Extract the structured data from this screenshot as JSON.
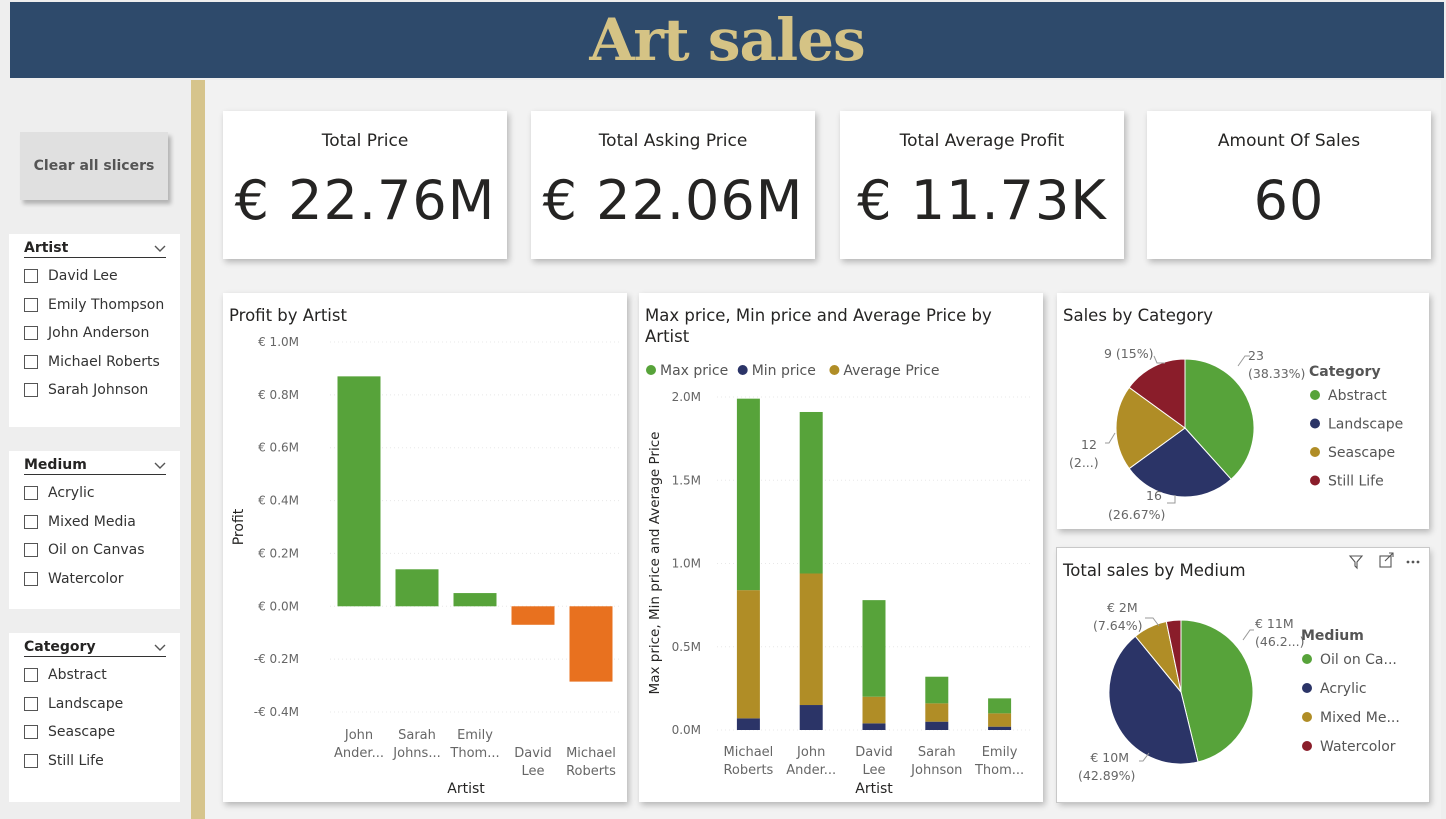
{
  "header": {
    "title": "Art sales"
  },
  "clear_button": "Clear all slicers",
  "slicers": [
    {
      "title": "Artist",
      "items": [
        "David Lee",
        "Emily Thompson",
        "John Anderson",
        "Michael Roberts",
        "Sarah Johnson"
      ]
    },
    {
      "title": "Medium",
      "items": [
        "Acrylic",
        "Mixed Media",
        "Oil on Canvas",
        "Watercolor"
      ]
    },
    {
      "title": "Category",
      "items": [
        "Abstract",
        "Landscape",
        "Seascape",
        "Still Life"
      ]
    }
  ],
  "cards": [
    {
      "title": "Total Price",
      "value": "€ 22.76M"
    },
    {
      "title": "Total Asking Price",
      "value": "€ 22.06M"
    },
    {
      "title": "Total Average Profit",
      "value": "€ 11.73K"
    },
    {
      "title": "Amount Of Sales",
      "value": "60"
    }
  ],
  "colors": {
    "green": "#57a33a",
    "navy": "#2b3467",
    "gold": "#b08d26",
    "maroon": "#8a1d2a",
    "orange": "#e8711f",
    "header_bg": "#2e4a6b",
    "header_text": "#d5c385"
  },
  "chart_data": [
    {
      "id": "profit",
      "type": "bar",
      "title": "Profit by Artist",
      "xlabel": "Artist",
      "ylabel": "Profit",
      "categories": [
        [
          "John",
          "Ander..."
        ],
        [
          "Sarah",
          "Johns..."
        ],
        [
          "Emily",
          "Thom..."
        ],
        [
          "David",
          "Lee"
        ],
        [
          "Michael",
          "Roberts"
        ]
      ],
      "values": [
        0.87,
        0.14,
        0.05,
        -0.07,
        -0.285
      ],
      "ylim": [
        -0.4,
        1.0
      ],
      "ticks": [
        1.0,
        0.8,
        0.6,
        0.4,
        0.2,
        0.0,
        -0.2,
        -0.4
      ],
      "tick_labels": [
        "€ 1.0M",
        "€ 0.8M",
        "€ 0.6M",
        "€ 0.4M",
        "€ 0.2M",
        "€ 0.0M",
        "-€ 0.2M",
        "-€ 0.4M"
      ]
    },
    {
      "id": "price",
      "type": "bar",
      "stacked": true,
      "title": "Max price, Min price and Average Price by Artist",
      "xlabel": "Artist",
      "ylabel": "Max price, Min price and Average Price",
      "categories": [
        [
          "Michael",
          "Roberts"
        ],
        [
          "John",
          "Ander..."
        ],
        [
          "David",
          "Lee"
        ],
        [
          "Sarah",
          "Johnson"
        ],
        [
          "Emily",
          "Thom..."
        ]
      ],
      "series": [
        {
          "name": "Min price",
          "values": [
            0.07,
            0.15,
            0.04,
            0.05,
            0.02
          ]
        },
        {
          "name": "Average Price",
          "values": [
            0.77,
            0.79,
            0.16,
            0.11,
            0.08
          ]
        },
        {
          "name": "Max price",
          "values": [
            1.15,
            0.97,
            0.58,
            0.16,
            0.09
          ]
        }
      ],
      "legend": [
        "Max price",
        "Min price",
        "Average Price"
      ],
      "ylim": [
        0,
        2.0
      ],
      "ticks": [
        2.0,
        1.5,
        1.0,
        0.5,
        0.0
      ],
      "tick_labels": [
        "2.0M",
        "1.5M",
        "1.0M",
        "0.5M",
        "0.0M"
      ]
    },
    {
      "id": "category",
      "type": "pie",
      "title": "Sales by Category",
      "legend_title": "Category",
      "labels": [
        "Abstract",
        "Landscape",
        "Seascape",
        "Still Life"
      ],
      "values": [
        23,
        16,
        12,
        9
      ],
      "data_labels": [
        [
          "23",
          "(38.33%)"
        ],
        [
          "16",
          "(26.67%)"
        ],
        [
          "12",
          "(2...)"
        ],
        [
          "9 (15%)"
        ]
      ]
    },
    {
      "id": "medium",
      "type": "pie",
      "title": "Total sales by Medium",
      "legend_title": "Medium",
      "labels": [
        "Oil on Ca...",
        "Acrylic",
        "Mixed Me...",
        "Watercolor"
      ],
      "values": [
        46.2,
        42.89,
        7.64,
        3.27
      ],
      "data_labels": [
        [
          "€ 11M",
          "(46.2...)"
        ],
        [
          "€ 10M",
          "(42.89%)"
        ],
        [
          "€ 2M",
          "(7.64%)"
        ],
        []
      ]
    }
  ]
}
